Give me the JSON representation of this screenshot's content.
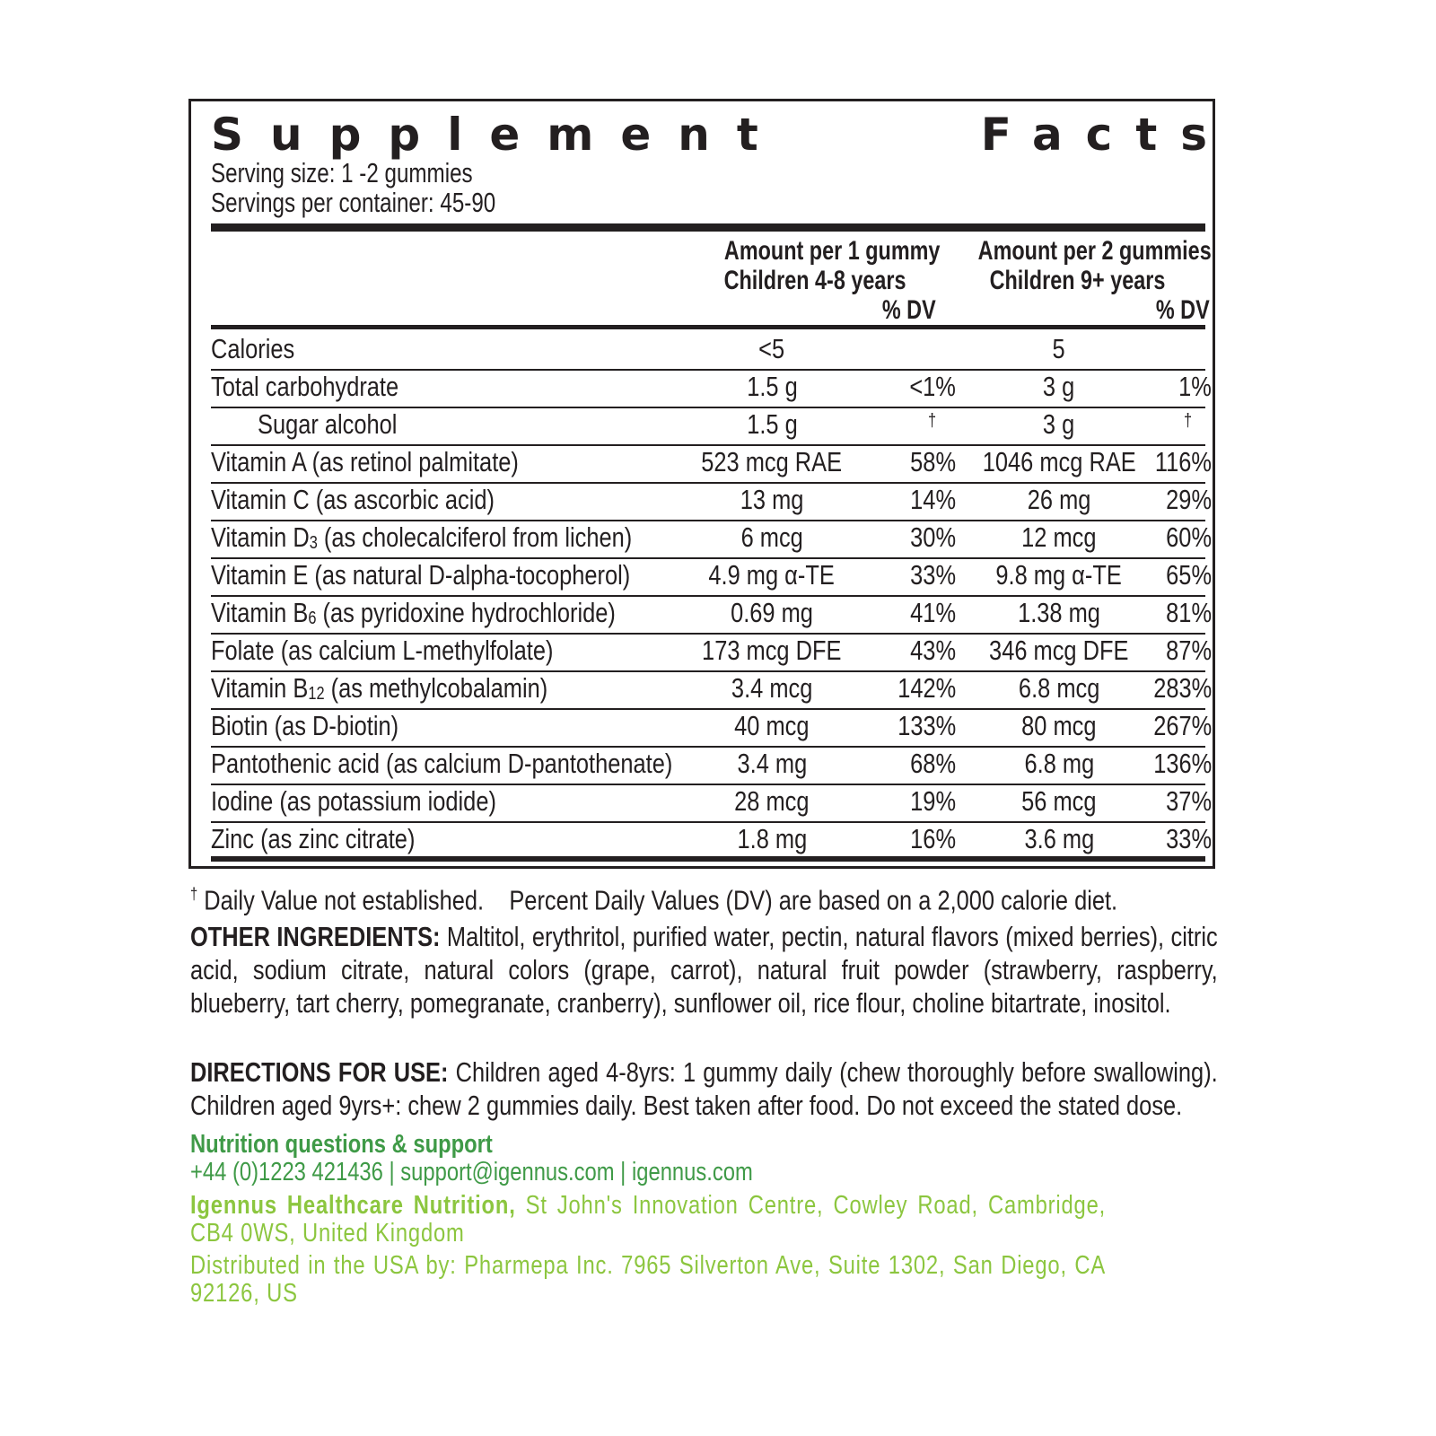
{
  "title": {
    "word1": "Supplement",
    "word2": "Facts"
  },
  "serving_size": "Serving size: 1 -2 gummies",
  "servings_per_container": "Servings per container: 45-90",
  "headers": {
    "col1_line1": "Amount per 1 gummy",
    "col1_line2": "Children 4-8 years",
    "col1_dv": "% DV",
    "col2_line1": "Amount per 2 gummies",
    "col2_line2": "Children 9+ years",
    "col2_dv": "% DV"
  },
  "rows": [
    {
      "pre": "Calories",
      "sub": "",
      "post": "",
      "a1": "<5",
      "d1": "",
      "a2": "5",
      "d2": ""
    },
    {
      "pre": "Total carbohydrate",
      "sub": "",
      "post": "",
      "a1": "1.5 g",
      "d1": "<1%",
      "a2": "3 g",
      "d2": "1%"
    },
    {
      "pre": "Sugar alcohol",
      "sub": "",
      "post": "",
      "a1": "1.5 g",
      "d1": "†",
      "a2": "3 g",
      "d2": "†",
      "indent": true
    },
    {
      "pre": "Vitamin A (as retinol palmitate)",
      "sub": "",
      "post": "",
      "a1": "523 mcg RAE",
      "d1": "58%",
      "a2": "1046 mcg RAE",
      "d2": "116%"
    },
    {
      "pre": "Vitamin C (as ascorbic acid)",
      "sub": "",
      "post": "",
      "a1": "13 mg",
      "d1": "14%",
      "a2": "26 mg",
      "d2": "29%"
    },
    {
      "pre": "Vitamin D",
      "sub": "3",
      "post": " (as cholecalciferol from lichen)",
      "a1": "6 mcg",
      "d1": "30%",
      "a2": "12 mcg",
      "d2": "60%"
    },
    {
      "pre": "Vitamin E (as natural D-alpha-tocopherol)",
      "sub": "",
      "post": "",
      "a1": "4.9 mg α-TE",
      "d1": "33%",
      "a2": "9.8 mg α-TE",
      "d2": "65%"
    },
    {
      "pre": "Vitamin B",
      "sub": "6",
      "post": " (as pyridoxine hydrochloride)",
      "a1": "0.69 mg",
      "d1": "41%",
      "a2": "1.38 mg",
      "d2": "81%"
    },
    {
      "pre": "Folate (as calcium L-methylfolate)",
      "sub": "",
      "post": "",
      "a1": "173 mcg DFE",
      "d1": "43%",
      "a2": "346 mcg DFE",
      "d2": "87%"
    },
    {
      "pre": "Vitamin B",
      "sub": "12",
      "post": " (as methylcobalamin)",
      "a1": "3.4 mcg",
      "d1": "142%",
      "a2": "6.8 mcg",
      "d2": "283%"
    },
    {
      "pre": "Biotin (as D-biotin)",
      "sub": "",
      "post": "",
      "a1": "40 mcg",
      "d1": "133%",
      "a2": "80 mcg",
      "d2": "267%"
    },
    {
      "pre": "Pantothenic acid (as calcium D-pantothenate)",
      "sub": "",
      "post": "",
      "a1": "3.4 mg",
      "d1": "68%",
      "a2": "6.8 mg",
      "d2": "136%"
    },
    {
      "pre": "Iodine (as potassium iodide)",
      "sub": "",
      "post": "",
      "a1": "28 mcg",
      "d1": "19%",
      "a2": "56 mcg",
      "d2": "37%"
    },
    {
      "pre": "Zinc (as zinc citrate)",
      "sub": "",
      "post": "",
      "a1": "1.8 mg",
      "d1": "16%",
      "a2": "3.6 mg",
      "d2": "33%"
    }
  ],
  "footnote": {
    "dagger": "†",
    "not_established": "Daily Value not established.",
    "percent_note": "Percent Daily Values (DV) are based on a 2,000 calorie diet."
  },
  "other_ingredients": {
    "label": "OTHER INGREDIENTS:",
    "text": " Maltitol, erythritol, purified water, pectin, natural flavors (mixed berries), citric acid, sodium citrate, natural colors (grape, carrot), natural fruit powder (strawberry, raspberry, blueberry, tart cherry, pomegranate, cranberry), sunflower oil, rice flour, choline bitartrate, inositol."
  },
  "directions": {
    "label": "DIRECTIONS FOR USE:",
    "text": " Children aged 4-8yrs: 1 gummy daily (chew thoroughly before swallowing). Children aged 9yrs+: chew 2 gummies daily. Best taken after food. Do not exceed the stated dose."
  },
  "support": {
    "heading": "Nutrition questions & support",
    "phone": "+44 (0)1223 421436",
    "email": "support@igennus.com",
    "website": "igennus.com",
    "sep": " | "
  },
  "company": {
    "name": "Igennus Healthcare Nutrition,",
    "address": " St John's Innovation Centre, Cowley Road, Cambridge, CB4 0WS, United Kingdom"
  },
  "distributor": "Distributed in the USA by: Pharmepa Inc. 7965 Silverton Ave, Suite 1302, San Diego, CA 92126, US",
  "colors": {
    "text": "#231f20",
    "green_dark": "#3f9a47",
    "green_light": "#8cc63f"
  }
}
